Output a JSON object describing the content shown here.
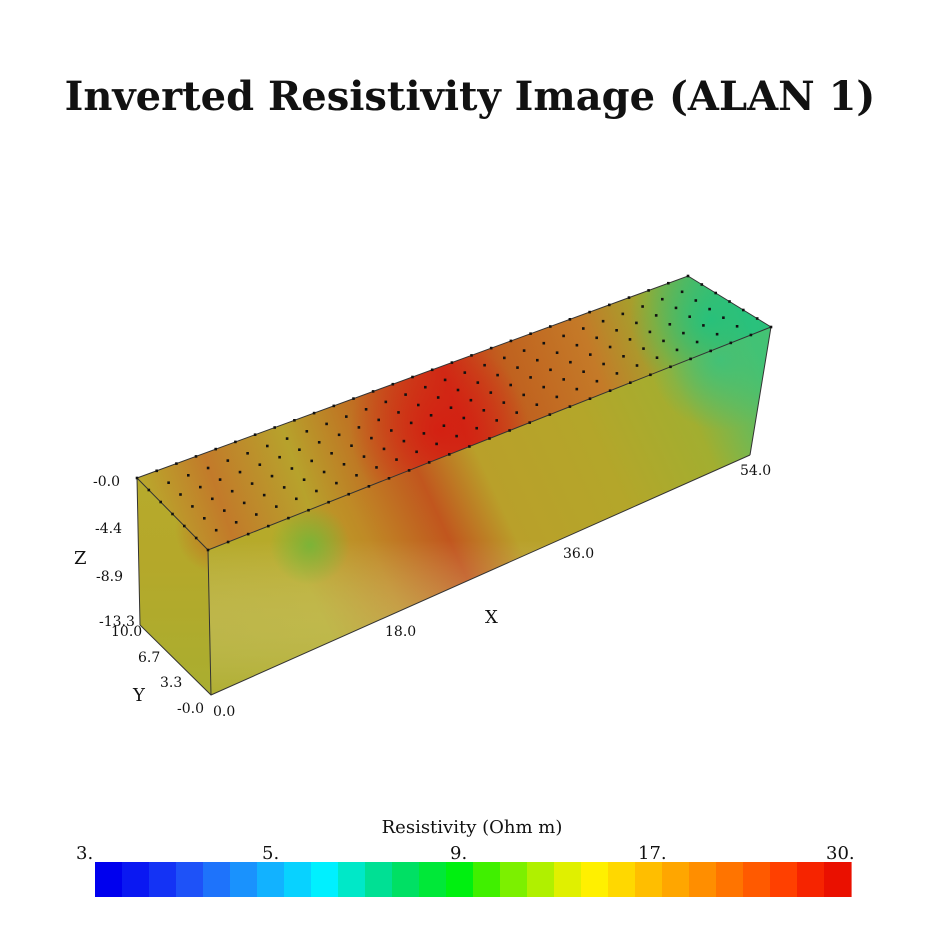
{
  "chart_data": {
    "type": "heatmap",
    "title": "Inverted Resistivity Image (ALAN 1)",
    "x_axis": {
      "label": "X",
      "ticks": [
        "18.0",
        "36.0",
        "54.0"
      ]
    },
    "y_axis": {
      "label": "Y",
      "ticks": [
        "-0.0",
        "3.3",
        "6.7",
        "10.0"
      ]
    },
    "z_axis": {
      "label": "Z",
      "ticks": [
        "-0.0",
        "-4.4",
        "-8.9",
        "-13.3"
      ]
    },
    "origin_label": "0.0",
    "colorbar": {
      "title": "Resistivity (Ohm m)",
      "labels": [
        "3.",
        "5.",
        "9.",
        "17.",
        "30."
      ],
      "scale": "log",
      "range": [
        3,
        30
      ],
      "colors": [
        "#0000ee",
        "#0a18f2",
        "#1433f5",
        "#1e52f8",
        "#1e73fb",
        "#1a92fd",
        "#12b2ff",
        "#08d2ff",
        "#00f0ff",
        "#00e8c8",
        "#00e094",
        "#00e064",
        "#00e838",
        "#00f010",
        "#40f000",
        "#7cf000",
        "#b0f000",
        "#e0f000",
        "#fff000",
        "#ffd800",
        "#ffbe00",
        "#ffa600",
        "#ff8e00",
        "#ff7400",
        "#ff5a00",
        "#ff4000",
        "#f62400",
        "#ea1000"
      ]
    },
    "surface_colors": {
      "low": "#1fbf78",
      "mid": "#b7a826",
      "high": "#cf2a16"
    }
  }
}
